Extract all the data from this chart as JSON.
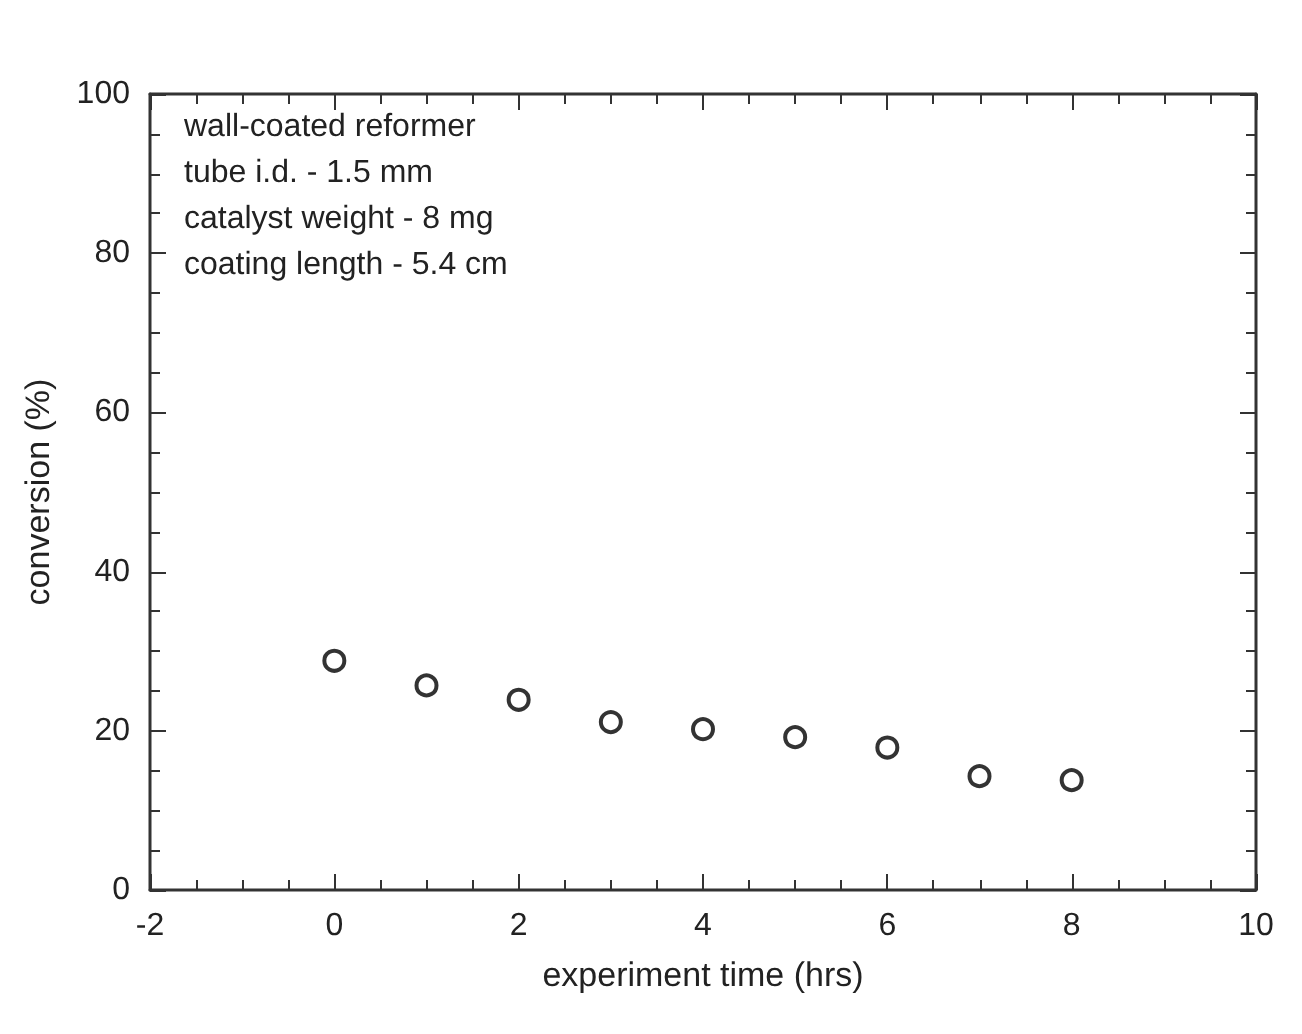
{
  "chart_data": {
    "type": "scatter",
    "xlabel": "experiment time (hrs)",
    "ylabel": "conversion (%)",
    "annotations": [
      "wall-coated reformer",
      "tube i.d. - 1.5 mm",
      "catalyst weight - 8 mg",
      "coating length - 5.4 cm"
    ],
    "x": [
      0,
      1,
      2,
      3,
      4,
      5,
      6,
      7,
      8
    ],
    "series": [
      {
        "color": "#000000",
        "values": [
          28.8,
          25.7,
          23.9,
          21.1,
          20.2,
          19.2,
          17.9,
          14.3,
          13.8
        ]
      }
    ],
    "xlim": [
      -2,
      10
    ],
    "xticks": [
      -2,
      0,
      2,
      4,
      6,
      8,
      10
    ],
    "ylim": [
      0,
      100
    ],
    "yticks": [
      0,
      20,
      40,
      60,
      80,
      100
    ],
    "grid": false,
    "marker": "circle"
  }
}
